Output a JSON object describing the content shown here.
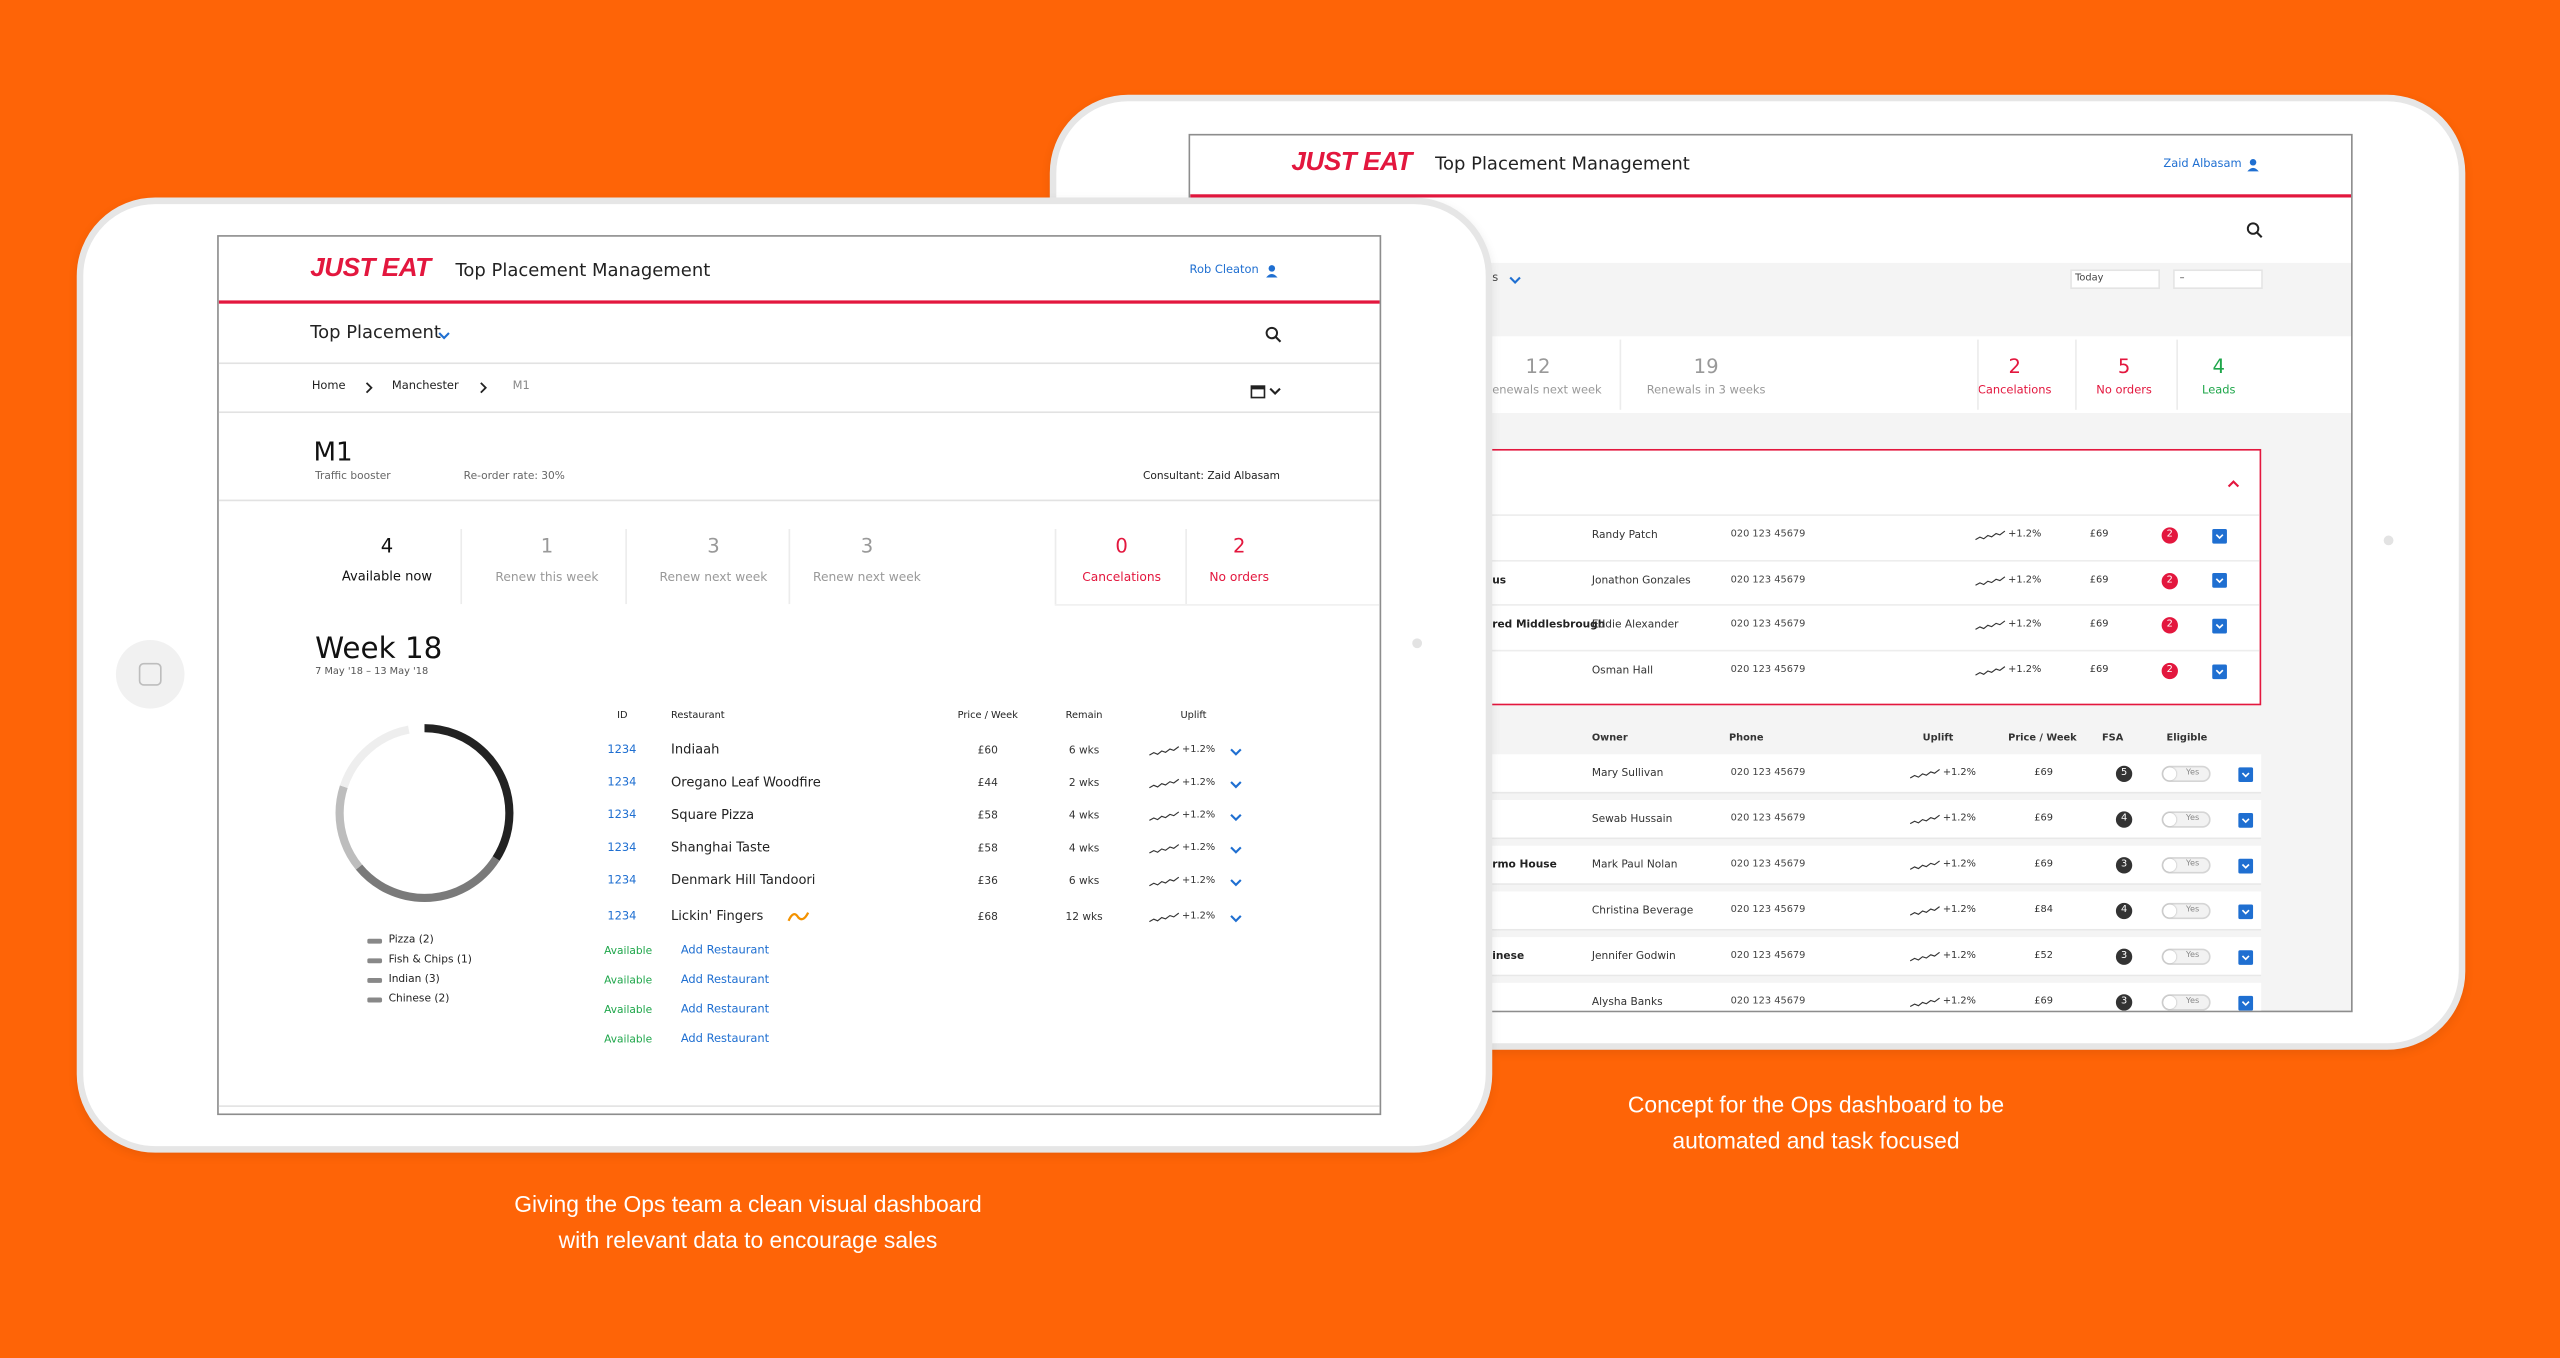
{
  "front": {
    "brand": "JUST EAT",
    "app_title": "Top Placement Management",
    "user": "Rob Cleaton",
    "nav": "Top Placement",
    "breadcrumb": [
      "Home",
      "Manchester",
      "M1"
    ],
    "area": {
      "name": "M1",
      "type": "Traffic booster",
      "reorder": "Re-order rate: 30%",
      "consultant": "Consultant: Zaid Albasam"
    },
    "stats": [
      {
        "value": 4,
        "label": "Available now"
      },
      {
        "value": 1,
        "label": "Renew this week"
      },
      {
        "value": 3,
        "label": "Renew next week"
      },
      {
        "value": 3,
        "label": "Renew next week"
      },
      {
        "value": 0,
        "label": "Cancelations"
      },
      {
        "value": 2,
        "label": "No orders"
      }
    ],
    "week": {
      "title": "Week 18",
      "dates": "7 May '18 – 13 May '18"
    },
    "legend": [
      "Pizza (2)",
      "Fish & Chips (1)",
      "Indian (3)",
      "Chinese (2)"
    ],
    "table": {
      "columns": [
        "ID",
        "Restaurant",
        "Price / Week",
        "Remain",
        "Uplift"
      ],
      "rows": [
        {
          "id": 1234,
          "name": "Indiaah",
          "price": "£60",
          "remain": "6 wks",
          "uplift": "+1.2%"
        },
        {
          "id": 1234,
          "name": "Oregano Leaf Woodfire",
          "price": "£44",
          "remain": "2 wks",
          "uplift": "+1.2%"
        },
        {
          "id": 1234,
          "name": "Square Pizza",
          "price": "£58",
          "remain": "4 wks",
          "uplift": "+1.2%"
        },
        {
          "id": 1234,
          "name": "Shanghai Taste",
          "price": "£58",
          "remain": "4 wks",
          "uplift": "+1.2%"
        },
        {
          "id": 1234,
          "name": "Denmark Hill Tandoori",
          "price": "£36",
          "remain": "6 wks",
          "uplift": "+1.2%"
        },
        {
          "id": 1234,
          "name": "Lickin' Fingers",
          "price": "£68",
          "remain": "12 wks",
          "uplift": "+1.2%"
        }
      ]
    },
    "available": [
      {
        "status": "Available",
        "action": "Add Restaurant"
      },
      {
        "status": "Available",
        "action": "Add Restaurant"
      },
      {
        "status": "Available",
        "action": "Add Restaurant"
      },
      {
        "status": "Available",
        "action": "Add Restaurant"
      }
    ]
  },
  "back": {
    "brand": "JUST EAT",
    "app_title": "Top Placement Management",
    "user": "Zaid Albasam",
    "filter": "s",
    "date_from": "Today",
    "date_to": "–",
    "stats": [
      {
        "value": 12,
        "label": "enewals next week"
      },
      {
        "value": 19,
        "label": "Renewals in 3 weeks"
      },
      {
        "value": 2,
        "label": "Cancelations"
      },
      {
        "value": 5,
        "label": "No orders"
      },
      {
        "value": 4,
        "label": "Leads"
      }
    ],
    "alerts": [
      {
        "owner": "Randy Patch",
        "phone": "020 123 45679",
        "uplift": "+1.2%",
        "price": "£69",
        "flag": 2
      },
      {
        "name": "us",
        "owner": "Jonathon Gonzales",
        "phone": "020 123 45679",
        "uplift": "+1.2%",
        "price": "£69",
        "flag": 2
      },
      {
        "name": "red Middlesbrough",
        "owner": "Eddie Alexander",
        "phone": "020 123 45679",
        "uplift": "+1.2%",
        "price": "£69",
        "flag": 2
      },
      {
        "owner": "Osman Hall",
        "phone": "020 123 45679",
        "uplift": "+1.2%",
        "price": "£69",
        "flag": 2
      }
    ],
    "table": {
      "columns": [
        "Owner",
        "Phone",
        "Uplift",
        "Price / Week",
        "FSA",
        "Eligible"
      ],
      "rows": [
        {
          "owner": "Mary Sullivan",
          "phone": "020 123 45679",
          "uplift": "+1.2%",
          "price": "£69",
          "fsa": 5,
          "eligible": "Yes"
        },
        {
          "owner": "Sewab Hussain",
          "phone": "020 123 45679",
          "uplift": "+1.2%",
          "price": "£69",
          "fsa": 4,
          "eligible": "Yes"
        },
        {
          "name": "rmo House",
          "owner": "Mark Paul Nolan",
          "phone": "020 123 45679",
          "uplift": "+1.2%",
          "price": "£69",
          "fsa": 3,
          "eligible": "Yes"
        },
        {
          "owner": "Christina Beverage",
          "phone": "020 123 45679",
          "uplift": "+1.2%",
          "price": "£84",
          "fsa": 4,
          "eligible": "Yes"
        },
        {
          "name": "inese",
          "owner": "Jennifer Godwin",
          "phone": "020 123 45679",
          "uplift": "+1.2%",
          "price": "£52",
          "fsa": 3,
          "eligible": "Yes"
        },
        {
          "owner": "Alysha Banks",
          "phone": "020 123 45679",
          "uplift": "+1.2%",
          "price": "£69",
          "fsa": 3,
          "eligible": "Yes"
        }
      ]
    }
  },
  "captions": {
    "front": [
      "Giving the Ops team a clean visual dashboard",
      "with relevant data to encourage sales"
    ],
    "back": [
      "Concept for the Ops dashboard to be",
      "automated and task focused"
    ]
  }
}
